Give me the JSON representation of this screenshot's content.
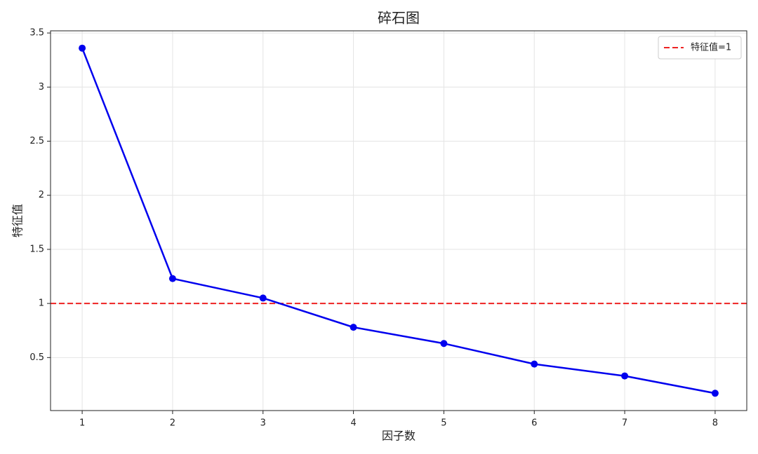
{
  "chart_data": {
    "type": "line",
    "title": "碎石图",
    "x_label": "因子数",
    "y_label": "特征值",
    "x": [
      1,
      2,
      3,
      4,
      5,
      6,
      7,
      8
    ],
    "series": [
      {
        "name": null,
        "color": "#0000ee",
        "values": [
          3.36,
          1.23,
          1.05,
          0.78,
          0.63,
          0.44,
          0.33,
          0.17
        ]
      }
    ],
    "reference_lines": [
      {
        "name": "特征值=1",
        "value": 1,
        "color": "#ee2222",
        "style": "dashed"
      }
    ],
    "xlim": [
      0.65,
      8.35
    ],
    "ylim": [
      0.01,
      3.52
    ],
    "xticks": [
      1,
      2,
      3,
      4,
      5,
      6,
      7,
      8
    ],
    "yticks": [
      0.5,
      1.0,
      1.5,
      2.0,
      2.5,
      3.0,
      3.5
    ],
    "grid": true,
    "legend": "upper right"
  }
}
